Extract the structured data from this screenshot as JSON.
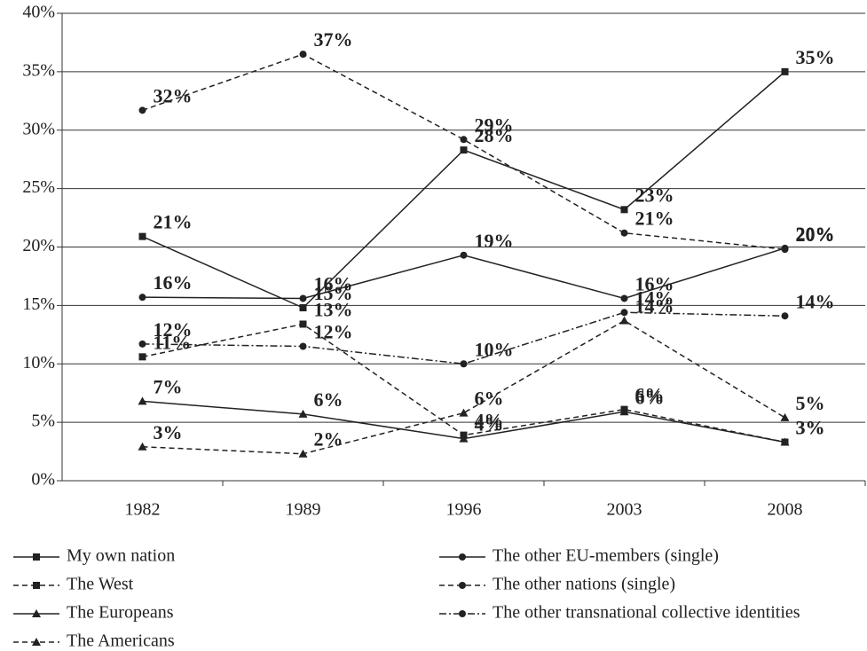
{
  "chart_data": {
    "type": "line",
    "categories": [
      "1982",
      "1989",
      "1996",
      "2003",
      "2008"
    ],
    "ylim": [
      0,
      40
    ],
    "yticks": [
      {
        "value": 0,
        "label": "0%"
      },
      {
        "value": 5,
        "label": "5%"
      },
      {
        "value": 10,
        "label": "10%"
      },
      {
        "value": 15,
        "label": "15%"
      },
      {
        "value": 20,
        "label": "20%"
      },
      {
        "value": 25,
        "label": "25%"
      },
      {
        "value": 30,
        "label": "30%"
      },
      {
        "value": 35,
        "label": "35%"
      },
      {
        "value": 40,
        "label": "40%"
      }
    ],
    "grid": true,
    "series": [
      {
        "name": "My own nation",
        "color": "#222222",
        "dash": "solid",
        "marker": "square",
        "values": [
          20.9,
          14.8,
          28.3,
          23.2,
          35
        ],
        "value_labels": [
          "21%",
          "15%",
          "28%",
          "23%",
          "35%"
        ]
      },
      {
        "name": "The West",
        "color": "#222222",
        "dash": "dashed",
        "marker": "square",
        "values": [
          10.6,
          13.4,
          3.9,
          6.1,
          3.3
        ],
        "value_labels": [
          "11%",
          "13%",
          "4%",
          "6%",
          "3%"
        ]
      },
      {
        "name": "The Europeans",
        "color": "#222222",
        "dash": "solid",
        "marker": "triangle",
        "values": [
          6.8,
          5.7,
          3.6,
          5.9,
          3.3
        ],
        "value_labels": [
          "7%",
          "6%",
          "4%",
          "6%",
          "3%"
        ]
      },
      {
        "name": "The Americans",
        "color": "#222222",
        "dash": "dashed",
        "marker": "triangle",
        "values": [
          2.9,
          2.3,
          5.8,
          13.7,
          5.4
        ],
        "value_labels": [
          "3%",
          "2%",
          "6%",
          "14%",
          "5%"
        ]
      },
      {
        "name": "The other EU-members (single)",
        "color": "#222222",
        "dash": "solid",
        "marker": "circle",
        "values": [
          15.7,
          15.6,
          19.3,
          15.6,
          19.9
        ],
        "value_labels": [
          "16%",
          "16%",
          "19%",
          "16%",
          "20%"
        ]
      },
      {
        "name": "The other nations (single)",
        "color": "#222222",
        "dash": "dashed",
        "marker": "circle",
        "values": [
          31.7,
          36.5,
          29.2,
          21.2,
          19.8
        ],
        "value_labels": [
          "32%",
          "37%",
          "29%",
          "21%",
          "20%"
        ]
      },
      {
        "name": "The other transnational collective identities",
        "color": "#222222",
        "dash": "dashdot",
        "marker": "circle",
        "values": [
          11.7,
          11.5,
          10,
          14.4,
          14.1
        ],
        "value_labels": [
          "12%",
          "12%",
          "10%",
          "14%",
          "14%"
        ]
      }
    ]
  }
}
